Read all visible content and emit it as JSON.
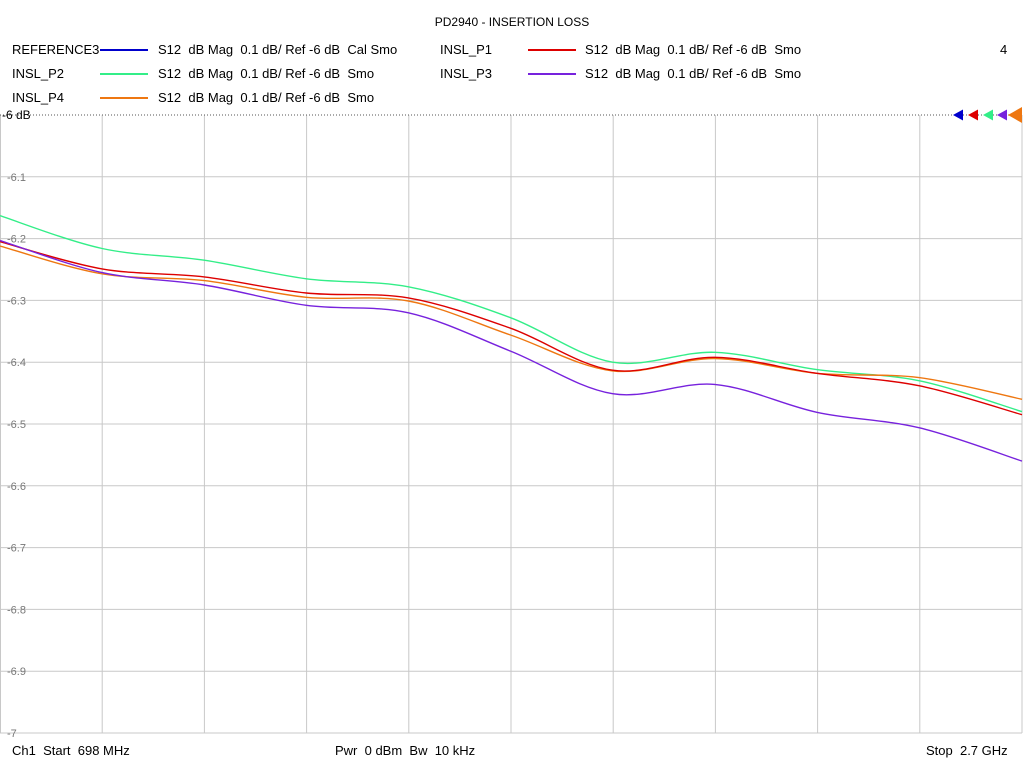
{
  "title": "PD2940 - INSERTION LOSS",
  "window_number": "4",
  "legend": [
    {
      "name": "REFERENCE3",
      "desc": "S12  dB Mag  0.1 dB/ Ref -6 dB  Cal Smo",
      "color": "#0000cc"
    },
    {
      "name": "INSL_P1",
      "desc": "S12  dB Mag  0.1 dB/ Ref -6 dB  Smo",
      "color": "#dd0000"
    },
    {
      "name": "INSL_P2",
      "desc": "S12  dB Mag  0.1 dB/ Ref -6 dB  Smo",
      "color": "#33ee88"
    },
    {
      "name": "INSL_P3",
      "desc": "S12  dB Mag  0.1 dB/ Ref -6 dB  Smo",
      "color": "#7722dd"
    },
    {
      "name": "INSL_P4",
      "desc": "S12  dB Mag  0.1 dB/ Ref -6 dB  Smo",
      "color": "#ee7711"
    }
  ],
  "footer": {
    "start": "Ch1  Start  698 MHz",
    "power": "Pwr  0 dBm  Bw  10 kHz",
    "stop": "Stop  2.7 GHz"
  },
  "chart_data": {
    "type": "line",
    "title": "PD2940 - INSERTION LOSS",
    "xlabel": "",
    "ylabel": "",
    "x_start_mhz": 698,
    "x_stop_mhz": 2700,
    "ylim": [
      -7,
      -6
    ],
    "y_ref": -6,
    "y_ref_label": "-6 dB",
    "y_ticks": [
      -6.1,
      -6.2,
      -6.3,
      -6.4,
      -6.5,
      -6.6,
      -6.7,
      -6.8,
      -6.9,
      -7
    ],
    "y_tick_labels": [
      "-6.1",
      "-6.2",
      "-6.3",
      "-6.4",
      "-6.5",
      "-6.6",
      "-6.7",
      "-6.8",
      "-6.9",
      "-7"
    ],
    "x_divisions": 10,
    "grid": true,
    "x": [
      698,
      898,
      1098,
      1298,
      1498,
      1698,
      1898,
      2098,
      2298,
      2498,
      2700
    ],
    "series": [
      {
        "name": "INSL_P1",
        "color": "#dd0000",
        "values": [
          -6.205,
          -6.249,
          -6.262,
          -6.288,
          -6.296,
          -6.345,
          -6.413,
          -6.392,
          -6.418,
          -6.438,
          -6.485
        ]
      },
      {
        "name": "INSL_P2",
        "color": "#33ee88",
        "values": [
          -6.163,
          -6.216,
          -6.235,
          -6.265,
          -6.278,
          -6.328,
          -6.4,
          -6.384,
          -6.412,
          -6.43,
          -6.48
        ]
      },
      {
        "name": "INSL_P3",
        "color": "#7722dd",
        "values": [
          -6.203,
          -6.255,
          -6.275,
          -6.308,
          -6.32,
          -6.382,
          -6.451,
          -6.436,
          -6.481,
          -6.506,
          -6.56
        ]
      },
      {
        "name": "INSL_P4",
        "color": "#ee7711",
        "values": [
          -6.212,
          -6.257,
          -6.268,
          -6.295,
          -6.301,
          -6.356,
          -6.414,
          -6.394,
          -6.418,
          -6.425,
          -6.46
        ]
      }
    ]
  }
}
